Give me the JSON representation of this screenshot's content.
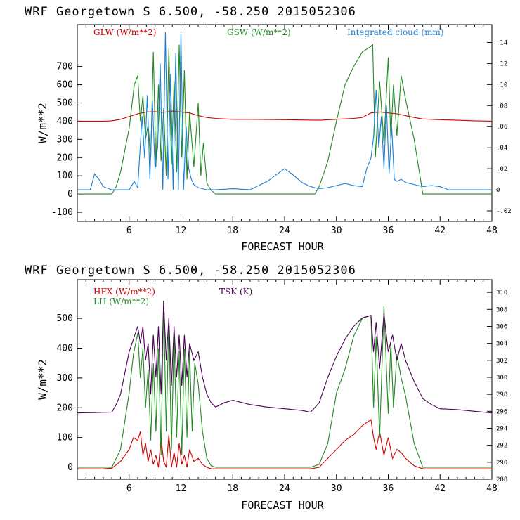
{
  "chart_data": [
    {
      "type": "line",
      "title": "WRF   Georgetown S   6.500, -58.250  2015052306",
      "xlabel": "FORECAST HOUR",
      "ylabel": "W/m**2",
      "xlim": [
        0,
        48
      ],
      "ylim": [
        -150,
        930
      ],
      "y2lim": [
        -0.03,
        0.157
      ],
      "xticks": [
        "6",
        "12",
        "18",
        "24",
        "30",
        "36",
        "42",
        "48"
      ],
      "yticks": [
        "-100",
        "0",
        "100",
        "200",
        "300",
        "400",
        "500",
        "600",
        "700"
      ],
      "y2ticks": [
        "-.02",
        "0",
        ".02",
        ".04",
        ".06",
        ".08",
        ".10",
        ".12",
        ".14"
      ],
      "series": [
        {
          "name": "GLW (W/m**2)",
          "axis": "left",
          "color": "#cc0000",
          "x": [
            0,
            3,
            4,
            5,
            6,
            7,
            8,
            9,
            10,
            11,
            12,
            13,
            14,
            15,
            16,
            18,
            20,
            24,
            28,
            30,
            32,
            33,
            34,
            35,
            36,
            37,
            38,
            39,
            40,
            42,
            44,
            46,
            48
          ],
          "y": [
            400,
            400,
            402,
            410,
            425,
            440,
            450,
            452,
            448,
            455,
            450,
            445,
            430,
            420,
            415,
            410,
            410,
            408,
            405,
            410,
            415,
            420,
            445,
            450,
            445,
            440,
            430,
            420,
            412,
            408,
            405,
            402,
            400
          ]
        },
        {
          "name": "GSW (W/m**2)",
          "axis": "left",
          "color": "#228b22",
          "x": [
            0,
            4,
            4.5,
            5,
            6,
            6.6,
            7,
            7.3,
            7.6,
            7.9,
            8.2,
            8.5,
            8.8,
            9.1,
            9.4,
            9.7,
            10,
            10.3,
            10.6,
            10.9,
            11.2,
            11.5,
            11.8,
            12.1,
            12.4,
            12.7,
            13,
            13.5,
            14,
            14.3,
            14.6,
            15,
            15.5,
            16,
            27.5,
            28,
            29,
            30,
            31,
            32,
            33,
            34,
            34.2,
            34.5,
            35,
            35.5,
            36,
            36.3,
            36.6,
            37,
            37.5,
            38,
            39,
            40,
            48
          ],
          "y": [
            0,
            0,
            40,
            120,
            360,
            600,
            650,
            400,
            540,
            300,
            380,
            200,
            780,
            150,
            600,
            180,
            470,
            100,
            800,
            160,
            620,
            120,
            820,
            200,
            680,
            80,
            450,
            150,
            500,
            100,
            280,
            60,
            20,
            0,
            0,
            40,
            180,
            400,
            600,
            700,
            780,
            810,
            820,
            200,
            620,
            280,
            750,
            300,
            600,
            320,
            650,
            520,
            300,
            0,
            0
          ]
        },
        {
          "name": "Integrated cloud (mm)",
          "axis": "right",
          "color": "#1a7fd4",
          "x": [
            0,
            1.5,
            2,
            2.5,
            3,
            4,
            6,
            6.6,
            7,
            7.5,
            7.8,
            8.1,
            8.4,
            8.7,
            9,
            9.3,
            9.6,
            9.9,
            10.2,
            10.5,
            10.8,
            11.1,
            11.4,
            11.7,
            12,
            12.3,
            12.6,
            12.9,
            13.2,
            13.5,
            14,
            14.5,
            15,
            16,
            18,
            20,
            22,
            24,
            25,
            26,
            27,
            28,
            29,
            30,
            31,
            32,
            33,
            33.5,
            34,
            34.3,
            34.6,
            34.9,
            35.2,
            35.5,
            35.8,
            36.1,
            36.4,
            36.7,
            37,
            37.5,
            38,
            39,
            40,
            41,
            42,
            43,
            48
          ],
          "x_note": "forecast hours",
          "y": [
            0,
            0,
            0.015,
            0.01,
            0.003,
            0,
            0,
            0.008,
            0.002,
            0.07,
            0.03,
            0.09,
            0.01,
            0.085,
            0.02,
            0.04,
            0.12,
            0.0,
            0.15,
            0.01,
            0.11,
            0.0,
            0.13,
            0.0,
            0.15,
            0.0,
            0.06,
            0.02,
            0.01,
            0.005,
            0.002,
            0.001,
            0.0,
            0,
            0.001,
            0.0,
            0.008,
            0.02,
            0.014,
            0.007,
            0.003,
            0.001,
            0.002,
            0.004,
            0.006,
            0.004,
            0.003,
            0.02,
            0.03,
            0.05,
            0.095,
            0.04,
            0.07,
            0.02,
            0.08,
            0.015,
            0.06,
            0.01,
            0.008,
            0.01,
            0.007,
            0.005,
            0.003,
            0.004,
            0.003,
            0,
            0
          ]
        }
      ]
    },
    {
      "type": "line",
      "title": "WRF   Georgetown S   6.500, -58.250  2015052306",
      "xlabel": "FORECAST HOUR",
      "ylabel": "W/m**2",
      "xlim": [
        0,
        48
      ],
      "ylim": [
        -40,
        630
      ],
      "y2lim": [
        288,
        311.5
      ],
      "xticks": [
        "6",
        "12",
        "18",
        "24",
        "30",
        "36",
        "42",
        "48"
      ],
      "yticks": [
        "0",
        "100",
        "200",
        "300",
        "400",
        "500"
      ],
      "y2ticks": [
        "288",
        "290",
        "292",
        "294",
        "296",
        "298",
        "300",
        "302",
        "304",
        "306",
        "308",
        "310"
      ],
      "series": [
        {
          "name": "HFX (W/m**2)",
          "axis": "left",
          "color": "#cc0000",
          "x": [
            0,
            3,
            4,
            5,
            6,
            6.5,
            7,
            7.3,
            7.6,
            7.9,
            8.2,
            8.5,
            8.8,
            9.1,
            9.4,
            9.7,
            10,
            10.3,
            10.6,
            10.9,
            11.2,
            11.5,
            11.8,
            12.1,
            12.4,
            12.7,
            13,
            13.5,
            14,
            14.5,
            15,
            15.5,
            16,
            20,
            27,
            28,
            29,
            30,
            31,
            32,
            33,
            34,
            34.3,
            34.6,
            35,
            35.5,
            36,
            36.5,
            37,
            37.5,
            38,
            39,
            40,
            42,
            48
          ],
          "y": [
            -5,
            -5,
            -3,
            20,
            60,
            100,
            90,
            120,
            40,
            80,
            20,
            60,
            10,
            40,
            0,
            100,
            20,
            0,
            110,
            0,
            50,
            0,
            80,
            10,
            40,
            0,
            60,
            20,
            30,
            10,
            0,
            -5,
            -5,
            -5,
            -5,
            0,
            30,
            60,
            90,
            110,
            140,
            160,
            100,
            60,
            120,
            40,
            100,
            30,
            60,
            50,
            30,
            5,
            -5,
            -5,
            -5
          ]
        },
        {
          "name": "LH (W/m**2)",
          "axis": "left",
          "color": "#228b22",
          "x": [
            0,
            4,
            5,
            6,
            6.5,
            7,
            7.3,
            7.6,
            7.9,
            8.2,
            8.5,
            8.8,
            9.1,
            9.4,
            9.7,
            10,
            10.3,
            10.6,
            10.9,
            11.2,
            11.5,
            11.8,
            12.1,
            12.4,
            12.7,
            13,
            13.3,
            13.6,
            14,
            14.5,
            15,
            15.5,
            16,
            20,
            27,
            28,
            29,
            30,
            31,
            32,
            33,
            34,
            34.3,
            34.6,
            35,
            35.5,
            36,
            36.3,
            36.6,
            37,
            37.5,
            38,
            39,
            40,
            42,
            48
          ],
          "y": [
            0,
            0,
            60,
            250,
            380,
            450,
            300,
            400,
            200,
            330,
            90,
            350,
            120,
            400,
            40,
            560,
            120,
            500,
            60,
            440,
            100,
            390,
            40,
            400,
            100,
            390,
            120,
            350,
            280,
            120,
            30,
            5,
            0,
            0,
            0,
            10,
            80,
            250,
            330,
            440,
            500,
            510,
            200,
            440,
            100,
            540,
            180,
            420,
            200,
            380,
            300,
            240,
            80,
            0,
            0,
            0
          ]
        },
        {
          "name": "TSK (K)",
          "axis": "right",
          "color": "#4b0055",
          "x": [
            0,
            4,
            4.5,
            5,
            6,
            7,
            7.3,
            7.6,
            7.9,
            8.2,
            8.5,
            8.8,
            9.1,
            9.4,
            9.7,
            10,
            10.3,
            10.6,
            10.9,
            11.2,
            11.5,
            11.8,
            12.1,
            12.4,
            12.7,
            13,
            13.5,
            14,
            14.5,
            15,
            15.5,
            16,
            17,
            18,
            20,
            22,
            24,
            26,
            27,
            28,
            29,
            30,
            31,
            32,
            33,
            34,
            34.3,
            34.6,
            35,
            35.5,
            36,
            36.5,
            37,
            37.5,
            38,
            39,
            40,
            41,
            42,
            44,
            46,
            48
          ],
          "y": [
            295.8,
            295.9,
            296.8,
            298,
            303,
            306,
            304,
            306,
            302,
            304,
            298,
            305,
            300,
            306,
            298,
            309,
            302,
            307,
            299,
            306,
            300,
            305,
            299,
            305,
            300,
            304,
            302,
            303,
            300,
            298,
            297,
            296.5,
            297,
            297.3,
            296.8,
            296.5,
            296.3,
            296.1,
            295.9,
            297,
            300,
            302.5,
            304.5,
            306,
            307,
            307.3,
            303,
            306.5,
            301,
            307.5,
            303,
            305,
            302,
            304,
            302,
            299.5,
            297.5,
            296.8,
            296.3,
            296.2,
            296,
            295.8
          ]
        }
      ]
    }
  ],
  "panels": [
    {
      "title": "WRF   Georgetown S   6.500, -58.250  2015052306",
      "legend": [
        "GLW (W/m**2)",
        "GSW (W/m**2)",
        "Integrated cloud (mm)"
      ],
      "xlabel": "FORECAST HOUR",
      "ylabel": "W/m**2"
    },
    {
      "title": "WRF   Georgetown S   6.500, -58.250  2015052306",
      "legend": [
        "HFX (W/m**2)",
        "LH (W/m**2)",
        "TSK (K)"
      ],
      "xlabel": "FORECAST HOUR",
      "ylabel": "W/m**2"
    }
  ]
}
